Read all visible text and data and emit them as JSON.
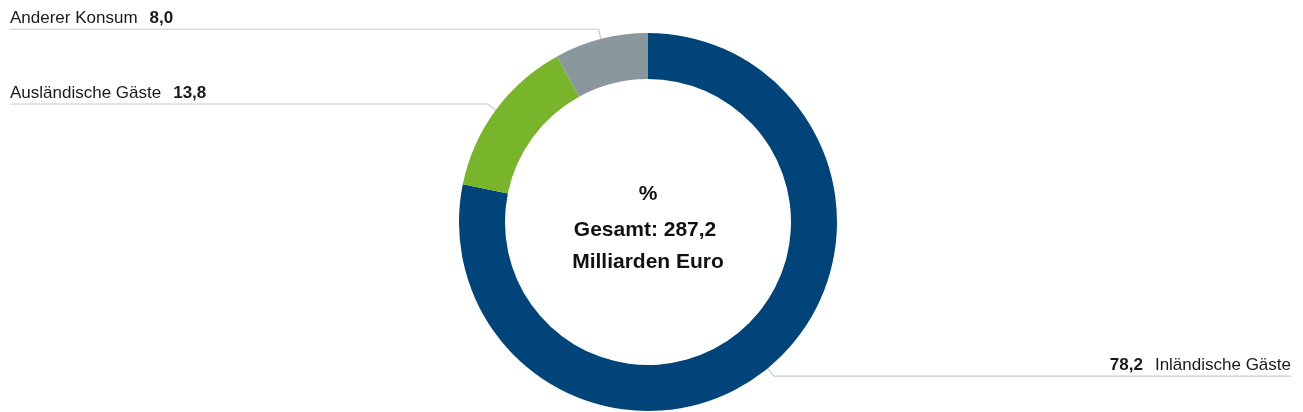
{
  "chart_data": {
    "type": "donut",
    "categories": [
      "Inländische Gäste",
      "Ausländische Gäste",
      "Anderer Konsum"
    ],
    "values": [
      78.2,
      13.8,
      8.0
    ],
    "colors": [
      "#004479",
      "#78b52b",
      "#8a979d"
    ],
    "value_labels": [
      "78,2",
      "13,8",
      "8,0"
    ],
    "annotations": [
      "%",
      "Gesamt: 287,2 Milliarden Euro"
    ]
  }
}
